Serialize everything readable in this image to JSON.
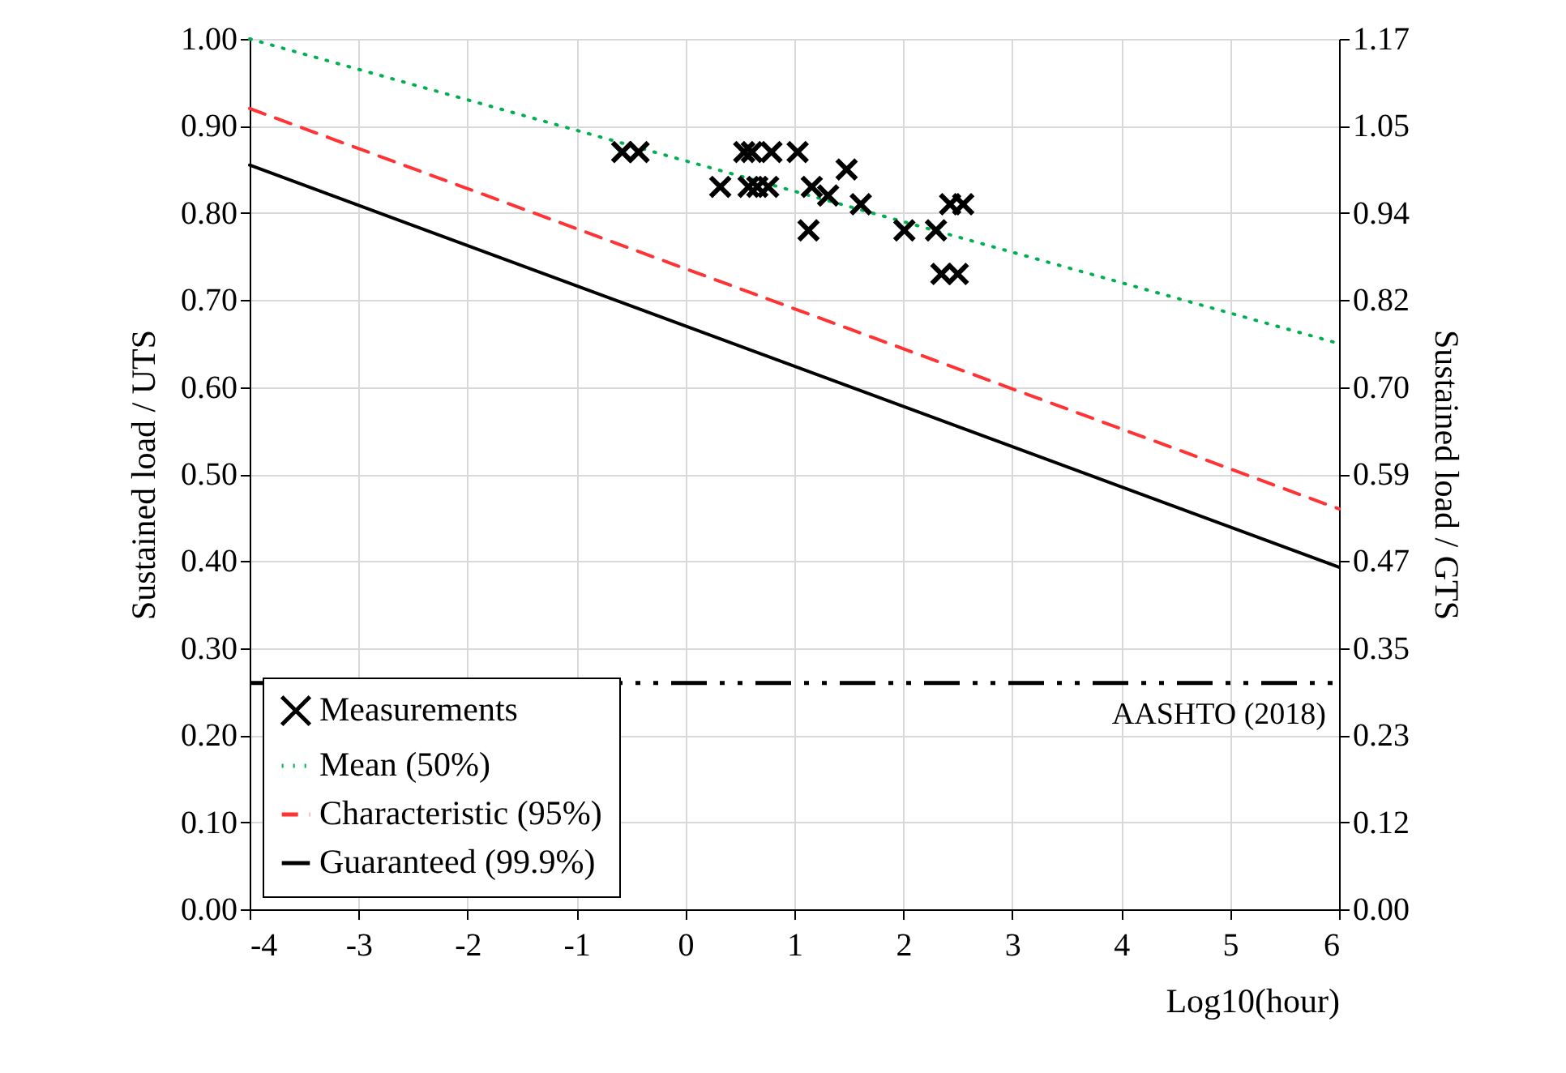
{
  "chart_data": {
    "type": "line",
    "xlabel": "Log10(hour)",
    "ylabel": "Sustained load / UTS",
    "y2label": "Sustained load / GTS",
    "xlim": [
      -4,
      6
    ],
    "xticks": [
      -4,
      -3,
      -2,
      -1,
      0,
      1,
      2,
      3,
      4,
      5,
      6
    ],
    "ylim": [
      0,
      1
    ],
    "yticks": [
      {
        "value": 0,
        "label": "0.00"
      },
      {
        "value": 0.1,
        "label": "0.10"
      },
      {
        "value": 0.2,
        "label": "0.20"
      },
      {
        "value": 0.3,
        "label": "0.30"
      },
      {
        "value": 0.4,
        "label": "0.40"
      },
      {
        "value": 0.5,
        "label": "0.50"
      },
      {
        "value": 0.6,
        "label": "0.60"
      },
      {
        "value": 0.7,
        "label": "0.70"
      },
      {
        "value": 0.8,
        "label": "0.80"
      },
      {
        "value": 0.9,
        "label": "0.90"
      },
      {
        "value": 1,
        "label": "1.00"
      }
    ],
    "y2lim": [
      0,
      1.17
    ],
    "y2ticks": [
      {
        "value": 0,
        "label": "0.00"
      },
      {
        "value": 0.117,
        "label": "0.12"
      },
      {
        "value": 0.234,
        "label": "0.23"
      },
      {
        "value": 0.351,
        "label": "0.35"
      },
      {
        "value": 0.468,
        "label": "0.47"
      },
      {
        "value": 0.585,
        "label": "0.59"
      },
      {
        "value": 0.702,
        "label": "0.70"
      },
      {
        "value": 0.819,
        "label": "0.82"
      },
      {
        "value": 0.936,
        "label": "0.94"
      },
      {
        "value": 1.053,
        "label": "1.05"
      },
      {
        "value": 1.17,
        "label": "1.17"
      }
    ],
    "grid": true,
    "legend": "bottom left",
    "series": [
      {
        "name": "Measurements",
        "type": "scatter",
        "marker": "cross",
        "color": "#000000",
        "x": [
          -0.58,
          -0.43,
          0.54,
          0.61,
          0.79,
          1.03,
          0.32,
          0.58,
          0.66,
          0.76,
          1.16,
          1.48,
          1.31,
          1.61,
          1.13,
          2.01,
          2.3,
          2.43,
          2.55,
          2.35,
          2.5
        ],
        "values": [
          0.87,
          0.87,
          0.87,
          0.87,
          0.87,
          0.87,
          0.83,
          0.83,
          0.83,
          0.83,
          0.83,
          0.85,
          0.82,
          0.81,
          0.78,
          0.78,
          0.78,
          0.81,
          0.81,
          0.73,
          0.73
        ]
      },
      {
        "name": "Mean (50%)",
        "line_style": "dotted",
        "color": "#00b050",
        "x": [
          -4,
          6
        ],
        "values": [
          1.0,
          0.65
        ]
      },
      {
        "name": "Characteristic (95%)",
        "line_style": "dashed",
        "color": "#ff3333",
        "x": [
          -4,
          6
        ],
        "values": [
          0.92,
          0.46
        ]
      },
      {
        "name": "Guaranteed (99.9%)",
        "line_style": "solid",
        "color": "#000000",
        "x": [
          -4,
          6
        ],
        "values": [
          0.855,
          0.393
        ]
      }
    ],
    "ref_lines": [
      {
        "axis": "y",
        "value": 0.26,
        "label": "AASHTO (2018)",
        "color": "#000000",
        "line_style": "dashed"
      }
    ]
  }
}
